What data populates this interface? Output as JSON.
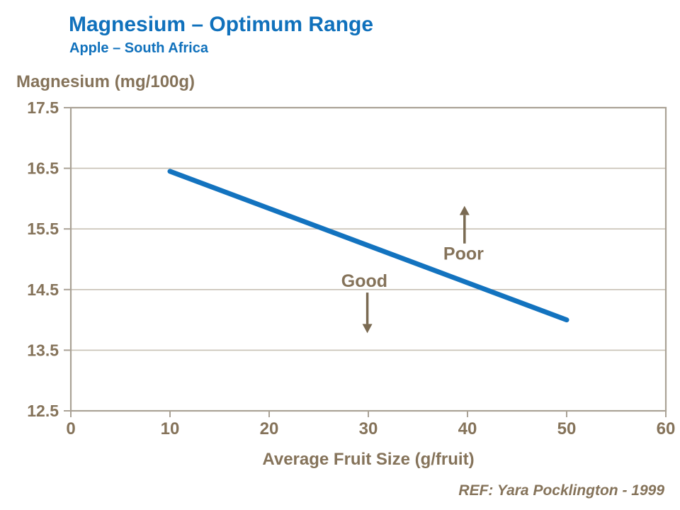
{
  "page": {
    "reference": "REF: Yara Pocklington - 1999"
  },
  "colors": {
    "accent_blue": "#1071bc",
    "text_brown": "#85735a",
    "arrow_brown": "#7a6a52",
    "gridline": "#c8c1b5",
    "frame": "#aaa296",
    "line_blue": "#1373bf"
  },
  "chart_data": {
    "type": "line",
    "title": "Magnesium – Optimum Range",
    "subtitle": "Apple – South Africa",
    "ylabel": "Magnesium (mg/100g)",
    "xlabel": "Average Fruit Size (g/fruit)",
    "xlim": [
      0,
      60
    ],
    "ylim": [
      12.5,
      17.5
    ],
    "xticks": [
      0,
      10,
      20,
      30,
      40,
      50,
      60
    ],
    "yticks": [
      12.5,
      13.5,
      14.5,
      15.5,
      16.5,
      17.5
    ],
    "grid": "horizontal",
    "legend": "none",
    "series": [
      {
        "name": "optimum-magnesium-line",
        "color": "#1373bf",
        "points": [
          [
            10,
            16.45
          ],
          [
            50,
            14.0
          ]
        ]
      }
    ],
    "annotations": [
      {
        "label": "Good",
        "text_x": 29.6,
        "text_y": 14.65,
        "arrow": {
          "direction": "down",
          "x": 29.9,
          "from_y": 14.45,
          "to_y": 13.78
        }
      },
      {
        "label": "Poor",
        "text_x": 39.6,
        "text_y": 15.1,
        "arrow": {
          "direction": "up",
          "x": 39.7,
          "from_y": 15.26,
          "to_y": 15.88
        }
      }
    ]
  }
}
